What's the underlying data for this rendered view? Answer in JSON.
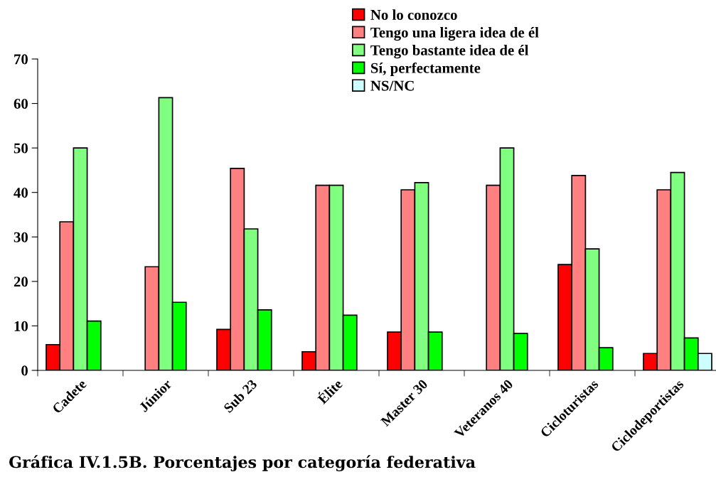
{
  "chart_data": {
    "type": "bar",
    "title": "Gráfica IV.1.5B. Porcentajes por categoría federativa",
    "categories": [
      "Cadete",
      "Júnior",
      "Sub 23",
      "Élite",
      "Master 30",
      "Veteranos 40",
      "Cicloturistas",
      "Ciclodeportistas"
    ],
    "series": [
      {
        "name": "No lo conozco",
        "color": "#ff0000",
        "values": [
          5.8,
          null,
          9.2,
          4.2,
          8.6,
          null,
          23.8,
          3.8
        ]
      },
      {
        "name": "Tengo una ligera idea de él",
        "color": "#ff8080",
        "values": [
          33.4,
          23.3,
          45.4,
          41.6,
          40.6,
          41.6,
          43.8,
          40.6
        ]
      },
      {
        "name": "Tengo bastante idea de él",
        "color": "#80ff80",
        "values": [
          50,
          61.3,
          31.8,
          41.6,
          42.2,
          50,
          27.3,
          44.5
        ]
      },
      {
        "name": "Sí, perfectamente",
        "color": "#00ff00",
        "values": [
          11.1,
          15.3,
          13.6,
          12.4,
          8.6,
          8.3,
          5.1,
          7.3
        ]
      },
      {
        "name": "NS/NC",
        "color": "#ccffff",
        "values": [
          null,
          null,
          null,
          null,
          null,
          null,
          null,
          3.8
        ]
      }
    ],
    "ylim": [
      0,
      70
    ],
    "yticks": [
      0,
      10,
      20,
      30,
      40,
      50,
      60,
      70
    ],
    "grid": false,
    "legend": "top"
  }
}
